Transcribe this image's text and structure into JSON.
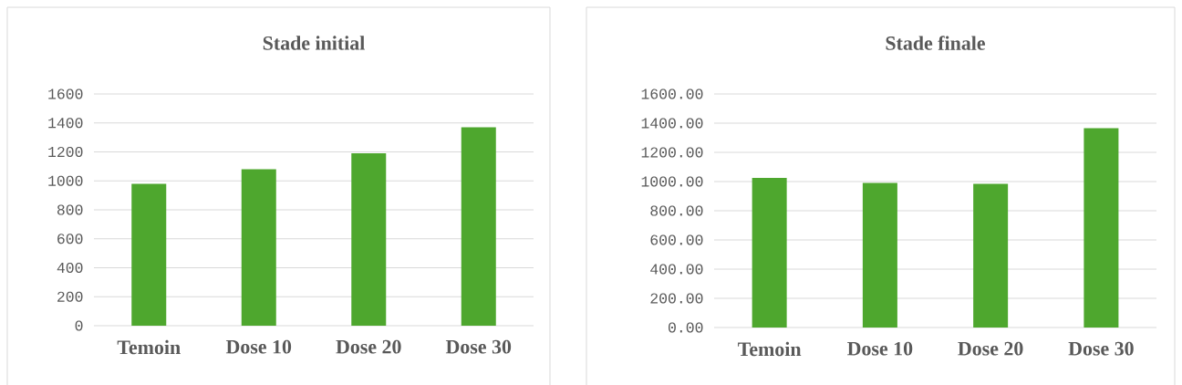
{
  "chart_data": [
    {
      "type": "bar",
      "title": "Stade initial",
      "categories": [
        "Temoin",
        "Dose 10",
        "Dose 20",
        "Dose 30"
      ],
      "values": [
        980,
        1080,
        1190,
        1370
      ],
      "color": "#4ea72e",
      "ylim": [
        0,
        1600
      ],
      "yticks": [
        0,
        200,
        400,
        600,
        800,
        1000,
        1200,
        1400,
        1600
      ],
      "grid": "y"
    },
    {
      "type": "bar",
      "title": "Stade finale",
      "categories": [
        "Temoin",
        "Dose 10",
        "Dose 20",
        "Dose 30"
      ],
      "values": [
        1025,
        990,
        985,
        1365
      ],
      "color": "#4ea72e",
      "ylim": [
        0,
        1600
      ],
      "yticks": [
        {
          "value": 0,
          "label": "0.00"
        },
        {
          "value": 200,
          "label": "200.00"
        },
        {
          "value": 400,
          "label": "400.00"
        },
        {
          "value": 600,
          "label": "600.00"
        },
        {
          "value": 800,
          "label": "800.00"
        },
        {
          "value": 1000,
          "label": "1000.00"
        },
        {
          "value": 1200,
          "label": "1200.00"
        },
        {
          "value": 1400,
          "label": "1400.00"
        },
        {
          "value": 1600,
          "label": "1600.00"
        }
      ],
      "grid": "y"
    }
  ]
}
